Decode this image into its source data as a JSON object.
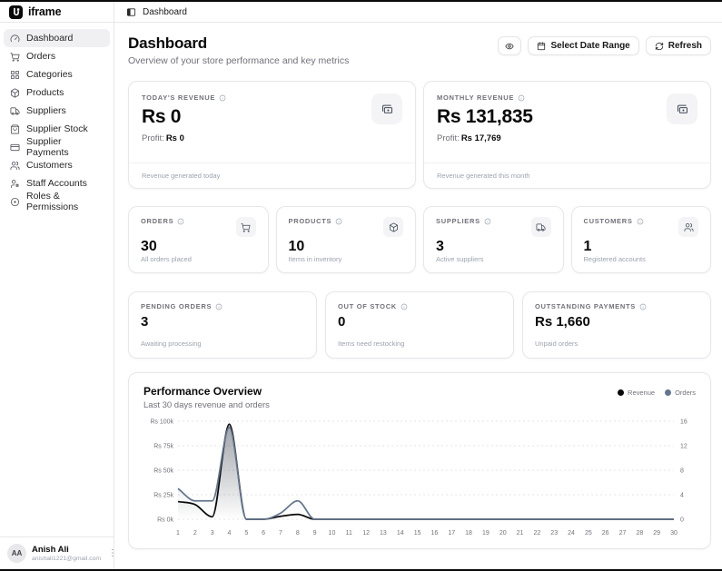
{
  "colors": {
    "accent": "#09090b",
    "revenue_line": "#0a0a0a",
    "orders_line": "#64748b",
    "border": "#e5e7eb",
    "muted": "#71717a"
  },
  "brand": {
    "name": "iframe"
  },
  "topbar": {
    "breadcrumb": "Dashboard"
  },
  "sidebar": {
    "items": [
      {
        "label": "Dashboard",
        "icon": "gauge-icon",
        "active": true
      },
      {
        "label": "Orders",
        "icon": "cart-icon"
      },
      {
        "label": "Categories",
        "icon": "grid-icon"
      },
      {
        "label": "Products",
        "icon": "package-icon"
      },
      {
        "label": "Suppliers",
        "icon": "truck-icon"
      },
      {
        "label": "Supplier Stock",
        "icon": "bag-icon"
      },
      {
        "label": "Supplier Payments",
        "icon": "credit-card-icon"
      },
      {
        "label": "Customers",
        "icon": "users-icon"
      },
      {
        "label": "Staff Accounts",
        "icon": "user-star-icon"
      },
      {
        "label": "Roles & Permissions",
        "icon": "circle-dot-icon"
      }
    ],
    "user": {
      "initials": "AA",
      "name": "Anish Ali",
      "email": "anishali1221@gmail.com"
    }
  },
  "header": {
    "title": "Dashboard",
    "subtitle": "Overview of your store performance and key metrics",
    "date_range_label": "Select Date Range",
    "refresh_label": "Refresh"
  },
  "stats": {
    "today_revenue": {
      "label": "TODAY'S REVENUE",
      "value": "Rs 0",
      "profit_label": "Profit:",
      "profit_value": "Rs 0",
      "footer": "Revenue generated today"
    },
    "monthly_revenue": {
      "label": "MONTHLY REVENUE",
      "value": "Rs 131,835",
      "profit_label": "Profit:",
      "profit_value": "Rs 17,769",
      "footer": "Revenue generated this month"
    },
    "orders": {
      "label": "ORDERS",
      "value": "30",
      "footer": "All orders placed"
    },
    "products": {
      "label": "PRODUCTS",
      "value": "10",
      "footer": "Items in inventory"
    },
    "suppliers": {
      "label": "SUPPLIERS",
      "value": "3",
      "footer": "Active suppliers"
    },
    "customers": {
      "label": "CUSTOMERS",
      "value": "1",
      "footer": "Registered accounts"
    },
    "pending_orders": {
      "label": "PENDING ORDERS",
      "value": "3",
      "footer": "Awaiting processing"
    },
    "out_of_stock": {
      "label": "OUT OF STOCK",
      "value": "0",
      "footer": "Items need restocking"
    },
    "outstanding_payments": {
      "label": "OUTSTANDING PAYMENTS",
      "value": "Rs 1,660",
      "footer": "Unpaid orders"
    }
  },
  "chart": {
    "title": "Performance Overview",
    "subtitle": "Last 30 days revenue and orders",
    "legend": [
      {
        "label": "Revenue"
      },
      {
        "label": "Orders"
      }
    ]
  },
  "chart_data": {
    "type": "area",
    "x": [
      1,
      2,
      3,
      4,
      5,
      6,
      7,
      8,
      9,
      10,
      11,
      12,
      13,
      14,
      15,
      16,
      17,
      18,
      19,
      20,
      21,
      22,
      23,
      24,
      25,
      26,
      27,
      28,
      29,
      30
    ],
    "series": [
      {
        "name": "Revenue",
        "axis": "left",
        "color": "#0a0a0a",
        "values": [
          18000,
          15000,
          2500,
          97000,
          0,
          0,
          3000,
          5000,
          0,
          0,
          0,
          0,
          0,
          0,
          0,
          0,
          0,
          0,
          0,
          0,
          0,
          0,
          0,
          0,
          0,
          0,
          0,
          0,
          0,
          0
        ]
      },
      {
        "name": "Orders",
        "axis": "right",
        "color": "#64748b",
        "values": [
          5,
          3,
          3,
          15,
          0,
          0,
          1,
          3,
          0,
          0,
          0,
          0,
          0,
          0,
          0,
          0,
          0,
          0,
          0,
          0,
          0,
          0,
          0,
          0,
          0,
          0,
          0,
          0,
          0,
          0
        ]
      }
    ],
    "left_axis": {
      "ticks": [
        "Rs 0k",
        "Rs 25k",
        "Rs 50k",
        "Rs 75k",
        "Rs 100k"
      ],
      "min": 0,
      "max": 100000
    },
    "right_axis": {
      "ticks": [
        "0",
        "4",
        "8",
        "12",
        "16"
      ],
      "min": 0,
      "max": 16
    },
    "grid": "horizontal-dotted",
    "legend_position": "top-right",
    "title": "Performance Overview"
  }
}
